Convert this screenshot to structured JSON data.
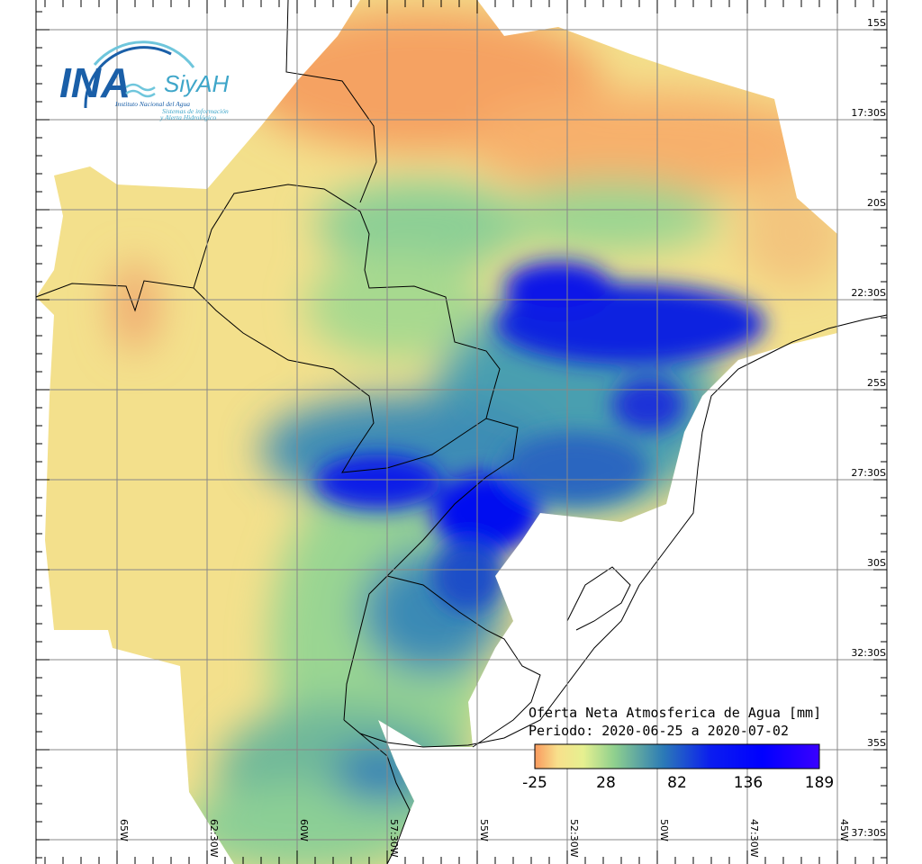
{
  "logo": {
    "acronym": "INA",
    "product": "SiyAH",
    "institution": "Instituto Nacional del Agua",
    "system_line1": "Sistemas de información",
    "system_line2": "y Alerta Hidrológico"
  },
  "legend": {
    "title": "Oferta Neta Atmosferica de Agua [mm]",
    "period": "Periodo: 2020-06-25 a 2020-07-02",
    "ticks": [
      "-25",
      "28",
      "82",
      "136",
      "189"
    ],
    "range": [
      -25,
      189
    ],
    "colors": [
      "#f99a5e",
      "#f8e08c",
      "#e6f090",
      "#8fd08e",
      "#2c7bb6",
      "#0a1cf0",
      "#0000ff",
      "#3a00ff"
    ]
  },
  "grid": {
    "lat_labels": [
      "15S",
      "17:30S",
      "20S",
      "22:30S",
      "25S",
      "27:30S",
      "30S",
      "32:30S",
      "35S",
      "37:30S"
    ],
    "lon_labels": [
      "65W",
      "62:30W",
      "60W",
      "57:30W",
      "55W",
      "52:30W",
      "50W",
      "47:30W",
      "45W"
    ]
  }
}
